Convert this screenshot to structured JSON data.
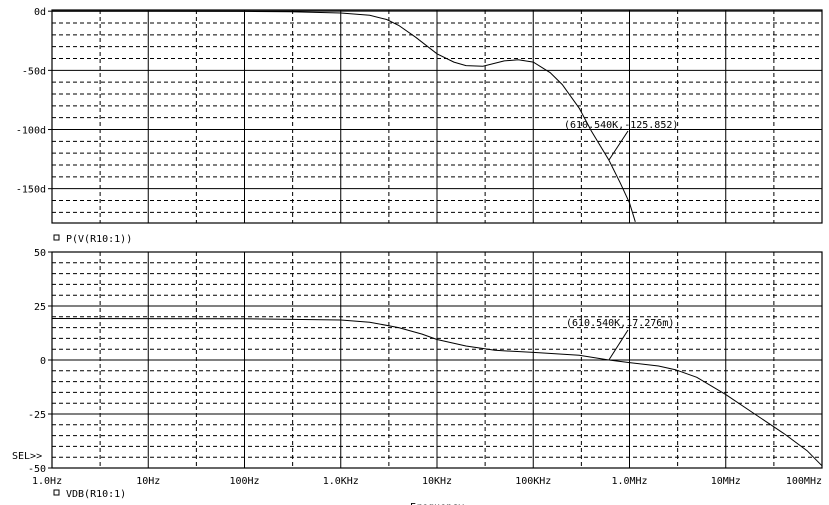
{
  "chart_data": [
    {
      "type": "line",
      "panel": "phase",
      "legend_label": "P(V(R10:1))",
      "yticks": [
        "0d",
        "-50d",
        "-100d",
        "-150d"
      ],
      "ytick_values": [
        0,
        -50,
        -100,
        -150
      ],
      "ylim": [
        -179,
        1
      ],
      "x_scale": "log",
      "xlim": [
        1,
        100000000
      ],
      "series": [
        {
          "x": [
            1,
            10,
            100,
            300,
            1000,
            2000,
            3000,
            4000,
            6000,
            10000,
            15000,
            20000,
            30000,
            50000,
            70000,
            100000,
            150000,
            200000,
            300000,
            400000,
            610540,
            800000,
            1000000,
            1150000
          ],
          "y": [
            0,
            0,
            -0.2,
            -0.5,
            -1.5,
            -3.5,
            -7,
            -12,
            -22,
            -36,
            -43,
            -46,
            -46.5,
            -42,
            -41,
            -43,
            -52,
            -62,
            -82,
            -101,
            -125.852,
            -145,
            -162,
            -178
          ]
        }
      ],
      "annotation": {
        "text": "(610.540K,-125.852)",
        "x": 610540,
        "y": -125.852
      }
    },
    {
      "type": "line",
      "panel": "magnitude",
      "legend_label": "VDB(R10:1)",
      "sel_label": "SEL>>",
      "yticks": [
        "50",
        "25",
        "0",
        "-25",
        "-50"
      ],
      "ytick_values": [
        50,
        25,
        0,
        -25,
        -50
      ],
      "ylim": [
        -50,
        50
      ],
      "x_scale": "log",
      "xlim": [
        1,
        100000000
      ],
      "xticks": [
        "1.0Hz",
        "10Hz",
        "100Hz",
        "1.0KHz",
        "10KHz",
        "100KHz",
        "1.0MHz",
        "10MHz",
        "100MHz"
      ],
      "xtick_values": [
        1,
        10,
        100,
        1000,
        10000,
        100000,
        1000000,
        10000000,
        100000000
      ],
      "xlabel": "Frequency",
      "series": [
        {
          "x": [
            1,
            100,
            1000,
            2000,
            4000,
            7000,
            10000,
            20000,
            40000,
            100000,
            300000,
            610540,
            1000000,
            2000000,
            3000000,
            5000000,
            10000000,
            20000000,
            40000000,
            70000000,
            100000000
          ],
          "y": [
            19.2,
            19.1,
            18.5,
            17.5,
            15,
            12,
            9.5,
            6.5,
            4.5,
            3.5,
            2.2,
            0.017,
            -1.2,
            -2.8,
            -4.5,
            -8,
            -16,
            -25,
            -34,
            -42,
            -49
          ]
        }
      ],
      "annotation": {
        "text": "(610.540K,17.276m)",
        "x": 610540,
        "y": 0.017
      }
    }
  ]
}
